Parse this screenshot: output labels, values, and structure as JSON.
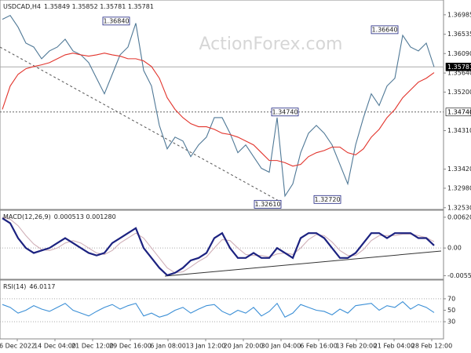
{
  "chart_data": [
    {
      "type": "line",
      "title": "USDCAD,H4",
      "subtitle": "1.35849 1.35852 1.35781 1.35781",
      "watermark": "ActionForex.com",
      "x_labels": [
        "6 Dec 2022",
        "14 Dec 04:00",
        "21 Dec 12:00",
        "29 Dec 16:00",
        "6 Jan 08:00",
        "13 Jan 12:00",
        "20 Jan 20:00",
        "30 Jan 04:00",
        "6 Feb 16:00",
        "13 Feb 20:00",
        "21 Feb 04:00",
        "28 Feb 12:00"
      ],
      "ylim": [
        1.3249,
        1.3729
      ],
      "yticks": [
        1.36985,
        1.36535,
        {
          "value": 1.3609,
          "label": "1.36090"
        },
        {
          "value": 1.3564,
          "label": "1.35640"
        },
        {
          "value": 1.352,
          "label": "1.35200"
        },
        {
          "value": 1.3431,
          "label": "1.34310"
        },
        {
          "value": 1.3342,
          "label": "1.33420"
        },
        {
          "value": 1.3298,
          "label": "1.32980"
        },
        {
          "value": 1.3253,
          "label": "1.32530"
        }
      ],
      "series": [
        {
          "color": "#4f7896",
          "values": [
            1.3688,
            1.3697,
            1.367,
            1.3633,
            1.3624,
            1.3597,
            1.3615,
            1.3624,
            1.3642,
            1.3615,
            1.3606,
            1.3588,
            1.3552,
            1.3516,
            1.3561,
            1.3606,
            1.3624,
            1.3679,
            1.357,
            1.3534,
            1.3443,
            1.3389,
            1.3416,
            1.3407,
            1.3371,
            1.3398,
            1.3416,
            1.3461,
            1.3461,
            1.3425,
            1.338,
            1.3398,
            1.3371,
            1.3344,
            1.3335,
            1.3461,
            1.328,
            1.3308,
            1.338,
            1.3425,
            1.3443,
            1.3425,
            1.3398,
            1.3353,
            1.3308,
            1.3398,
            1.3461,
            1.3516,
            1.3489,
            1.3534,
            1.3552,
            1.3651,
            1.3624,
            1.3615,
            1.3633,
            1.3578
          ]
        },
        {
          "color": "#e2342c",
          "values": [
            1.348,
            1.3534,
            1.3561,
            1.3574,
            1.3579,
            1.3583,
            1.3588,
            1.3597,
            1.3606,
            1.361,
            1.3606,
            1.3603,
            1.3606,
            1.361,
            1.3606,
            1.3603,
            1.3597,
            1.3597,
            1.3592,
            1.3579,
            1.3552,
            1.3507,
            1.348,
            1.3461,
            1.3447,
            1.344,
            1.344,
            1.3434,
            1.3425,
            1.3422,
            1.3416,
            1.3407,
            1.3398,
            1.338,
            1.3362,
            1.3362,
            1.3357,
            1.3349,
            1.3353,
            1.3371,
            1.338,
            1.3385,
            1.3393,
            1.3393,
            1.338,
            1.3375,
            1.3389,
            1.3416,
            1.3434,
            1.3461,
            1.348,
            1.3507,
            1.3525,
            1.3543,
            1.3552,
            1.3565
          ]
        }
      ],
      "levels": [
        {
          "value": 1.35781,
          "label": "1.35781",
          "color": "#000000"
        },
        {
          "value": 1.3474,
          "label": "1.34740",
          "color": "#ffffff"
        }
      ],
      "price_labels": [
        {
          "value": 1.3684,
          "label": "1.36840"
        },
        {
          "value": 1.3664,
          "label": "1.36640"
        },
        {
          "value": 1.3474,
          "label": "1.34740"
        },
        {
          "value": 1.3261,
          "label": "1.32610"
        },
        {
          "value": 1.3272,
          "label": "1.32720"
        }
      ]
    },
    {
      "type": "line",
      "title": "MACD(12,26,9)",
      "subtitle": "0.000513 0.001280",
      "ylim": [
        -0.0063,
        0.0073
      ],
      "yticks": [
        0.006208,
        {
          "value": 0,
          "label": "0.00"
        },
        -0.005577
      ],
      "grid_at": [
        0
      ],
      "series": [
        {
          "color": "#d0b0b8",
          "values": [
            0.0062,
            0.0058,
            0.0045,
            0.0025,
            0.0008,
            -0.0003,
            -0.0005,
            0,
            0.001,
            0.0015,
            0.001,
            0,
            -0.001,
            -0.0013,
            -0.0005,
            0.001,
            0.002,
            0.003,
            0.002,
            0,
            -0.002,
            -0.004,
            -0.005,
            -0.0048,
            -0.0038,
            -0.0027,
            -0.0018,
            0,
            0.0017,
            0.0015,
            0,
            -0.0013,
            -0.0015,
            -0.0015,
            -0.0018,
            -0.0012,
            -0.001,
            -0.0013,
            0,
            0.0017,
            0.0027,
            0.0025,
            0.0012,
            -0.0005,
            -0.0015,
            -0.0015,
            -0.0003,
            0.0015,
            0.0025,
            0.0025,
            0.0025,
            0.0028,
            0.0028,
            0.0025,
            0.0021,
            0.00128
          ]
        },
        {
          "color": "#1c2280",
          "values": [
            0.006,
            0.005,
            0.002,
            0,
            -0.001,
            -0.0005,
            0,
            0.001,
            0.002,
            0.001,
            0,
            -0.001,
            -0.0015,
            -0.001,
            0.001,
            0.002,
            0.003,
            0.004,
            0,
            -0.002,
            -0.004,
            -0.0055,
            -0.005,
            -0.004,
            -0.0025,
            -0.002,
            -0.001,
            0.002,
            0.003,
            0,
            -0.002,
            -0.002,
            -0.001,
            -0.002,
            -0.002,
            0,
            -0.001,
            -0.002,
            0.002,
            0.003,
            0.003,
            0.002,
            0,
            -0.002,
            -0.002,
            -0.001,
            0.001,
            0.003,
            0.003,
            0.002,
            0.003,
            0.003,
            0.003,
            0.002,
            0.002,
            0.000513
          ]
        }
      ]
    },
    {
      "type": "line",
      "title": "RSI(14)",
      "subtitle": "46.0117",
      "ylim": [
        0,
        100
      ],
      "yticks": [
        70,
        50,
        30
      ],
      "grid_at": [
        70,
        30
      ],
      "series": [
        {
          "color": "#3b8fd6",
          "values": [
            60,
            55,
            45,
            50,
            58,
            52,
            48,
            55,
            62,
            50,
            45,
            40,
            48,
            55,
            60,
            52,
            58,
            62,
            40,
            45,
            38,
            42,
            50,
            55,
            45,
            52,
            58,
            60,
            48,
            42,
            50,
            45,
            55,
            40,
            48,
            62,
            38,
            45,
            60,
            55,
            50,
            48,
            42,
            52,
            45,
            58,
            60,
            62,
            50,
            58,
            55,
            65,
            52,
            60,
            55,
            46.0117
          ]
        }
      ]
    }
  ]
}
